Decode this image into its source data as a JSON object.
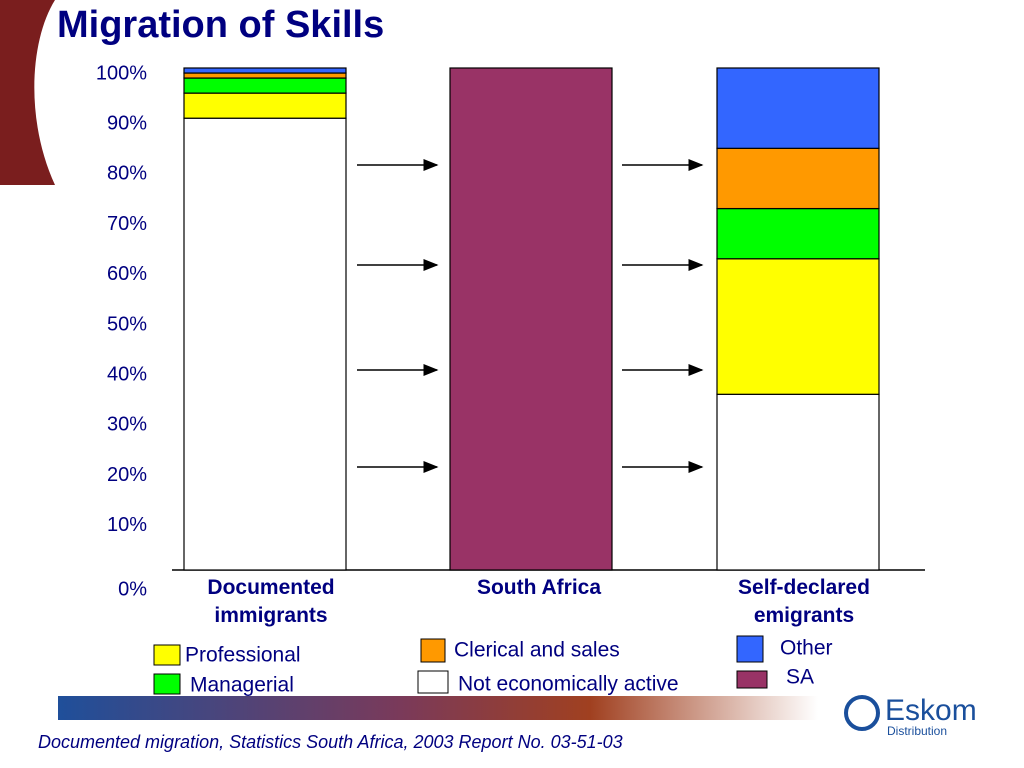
{
  "chart_data": {
    "type": "stacked_bar",
    "title": "Migration of Skills",
    "categories": [
      "Documented immigrants",
      "South Africa",
      "Self-declared emigrants"
    ],
    "series": [
      {
        "name": "Not economically active",
        "color": "#ffffff",
        "values": [
          90,
          0,
          35
        ]
      },
      {
        "name": "Professional",
        "color": "#ffff00",
        "values": [
          5,
          0,
          27
        ]
      },
      {
        "name": "Managerial",
        "color": "#00ff00",
        "values": [
          3,
          0,
          10
        ]
      },
      {
        "name": "Clerical and sales",
        "color": "#ff9900",
        "values": [
          1,
          0,
          12
        ]
      },
      {
        "name": "Other",
        "color": "#3366ff",
        "values": [
          1,
          0,
          16
        ]
      },
      {
        "name": "SA",
        "color": "#993366",
        "values": [
          0,
          100,
          0
        ]
      }
    ],
    "ylim": [
      0,
      100
    ],
    "yticks": [
      {
        "value": 0,
        "label": "0%"
      },
      {
        "value": 10,
        "label": "10%"
      },
      {
        "value": 20,
        "label": "20%"
      },
      {
        "value": 30,
        "label": "30%"
      },
      {
        "value": 40,
        "label": "40%"
      },
      {
        "value": 50,
        "label": "50%"
      },
      {
        "value": 60,
        "label": "60%"
      },
      {
        "value": 70,
        "label": "70%"
      },
      {
        "value": 80,
        "label": "80%"
      },
      {
        "value": 90,
        "label": "90%"
      },
      {
        "value": 100,
        "label": "100%"
      }
    ],
    "source": "Documented migration, Statistics South Africa, 2003 Report No. 03-51-03",
    "logo": {
      "name": "Eskom",
      "division": "Distribution"
    }
  }
}
